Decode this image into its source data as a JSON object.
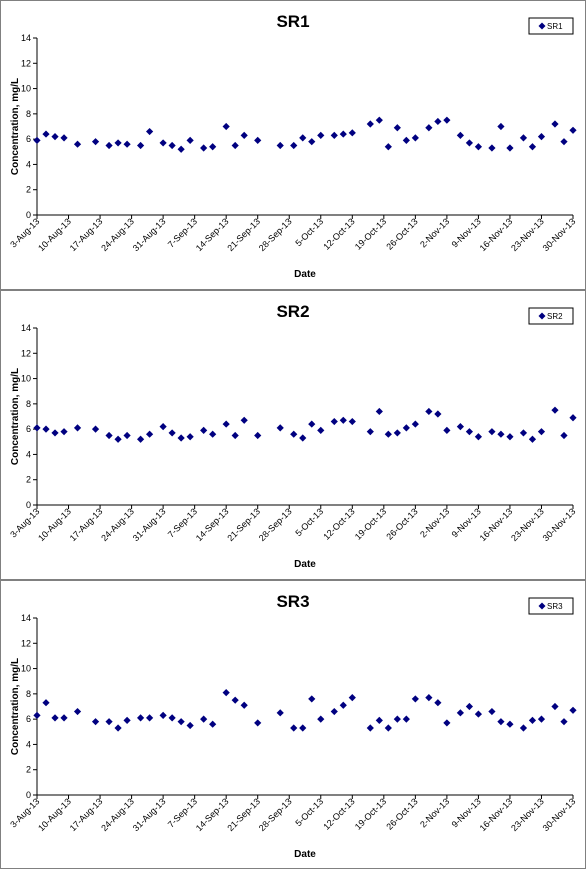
{
  "dates": [
    "3-Aug-13",
    "10-Aug-13",
    "17-Aug-13",
    "24-Aug-13",
    "31-Aug-13",
    "7-Sep-13",
    "14-Sep-13",
    "21-Sep-13",
    "28-Sep-13",
    "5-Oct-13",
    "12-Oct-13",
    "19-Oct-13",
    "26-Oct-13",
    "2-Nov-13",
    "9-Nov-13",
    "16-Nov-13",
    "23-Nov-13",
    "30-Nov-13"
  ],
  "colors": {
    "marker": "#000080",
    "axis": "#000000"
  },
  "chart_data": [
    {
      "type": "scatter",
      "title": "SR1",
      "legend": "SR1",
      "legend_position": "top-right",
      "xlabel": "Date",
      "ylabel": "Concentration, mg/L",
      "x_range": [
        "3-Aug-13",
        "30-Nov-13"
      ],
      "ylim": [
        0,
        14
      ],
      "yticks": [
        0,
        2,
        4,
        6,
        8,
        10,
        12,
        14
      ],
      "grid": false,
      "series": [
        {
          "name": "SR1",
          "points": [
            [
              "3-Aug-13",
              5.9
            ],
            [
              "5-Aug-13",
              6.4
            ],
            [
              "7-Aug-13",
              6.2
            ],
            [
              "9-Aug-13",
              6.1
            ],
            [
              "12-Aug-13",
              5.6
            ],
            [
              "16-Aug-13",
              5.8
            ],
            [
              "19-Aug-13",
              5.5
            ],
            [
              "21-Aug-13",
              5.7
            ],
            [
              "23-Aug-13",
              5.6
            ],
            [
              "26-Aug-13",
              5.5
            ],
            [
              "28-Aug-13",
              6.6
            ],
            [
              "31-Aug-13",
              5.7
            ],
            [
              "2-Sep-13",
              5.5
            ],
            [
              "4-Sep-13",
              5.2
            ],
            [
              "6-Sep-13",
              5.9
            ],
            [
              "9-Sep-13",
              5.3
            ],
            [
              "11-Sep-13",
              5.4
            ],
            [
              "14-Sep-13",
              7.0
            ],
            [
              "16-Sep-13",
              5.5
            ],
            [
              "18-Sep-13",
              6.3
            ],
            [
              "21-Sep-13",
              5.9
            ],
            [
              "26-Sep-13",
              5.5
            ],
            [
              "29-Sep-13",
              5.5
            ],
            [
              "1-Oct-13",
              6.1
            ],
            [
              "3-Oct-13",
              5.8
            ],
            [
              "5-Oct-13",
              6.3
            ],
            [
              "8-Oct-13",
              6.3
            ],
            [
              "10-Oct-13",
              6.4
            ],
            [
              "12-Oct-13",
              6.5
            ],
            [
              "16-Oct-13",
              7.2
            ],
            [
              "18-Oct-13",
              7.5
            ],
            [
              "20-Oct-13",
              5.4
            ],
            [
              "22-Oct-13",
              6.9
            ],
            [
              "24-Oct-13",
              5.9
            ],
            [
              "26-Oct-13",
              6.1
            ],
            [
              "29-Oct-13",
              6.9
            ],
            [
              "31-Oct-13",
              7.4
            ],
            [
              "2-Nov-13",
              7.5
            ],
            [
              "5-Nov-13",
              6.3
            ],
            [
              "7-Nov-13",
              5.7
            ],
            [
              "9-Nov-13",
              5.4
            ],
            [
              "12-Nov-13",
              5.3
            ],
            [
              "14-Nov-13",
              7.0
            ],
            [
              "16-Nov-13",
              5.3
            ],
            [
              "19-Nov-13",
              6.1
            ],
            [
              "21-Nov-13",
              5.4
            ],
            [
              "23-Nov-13",
              6.2
            ],
            [
              "26-Nov-13",
              7.2
            ],
            [
              "28-Nov-13",
              5.8
            ],
            [
              "30-Nov-13",
              6.7
            ]
          ]
        }
      ]
    },
    {
      "type": "scatter",
      "title": "SR2",
      "legend": "SR2",
      "legend_position": "top-right",
      "xlabel": "Date",
      "ylabel": "Concentration, mg/L",
      "x_range": [
        "3-Aug-13",
        "30-Nov-13"
      ],
      "ylim": [
        0,
        14
      ],
      "yticks": [
        0,
        2,
        4,
        6,
        8,
        10,
        12,
        14
      ],
      "grid": false,
      "series": [
        {
          "name": "SR2",
          "points": [
            [
              "3-Aug-13",
              6.1
            ],
            [
              "5-Aug-13",
              6.0
            ],
            [
              "7-Aug-13",
              5.7
            ],
            [
              "9-Aug-13",
              5.8
            ],
            [
              "12-Aug-13",
              6.1
            ],
            [
              "16-Aug-13",
              6.0
            ],
            [
              "19-Aug-13",
              5.5
            ],
            [
              "21-Aug-13",
              5.2
            ],
            [
              "23-Aug-13",
              5.5
            ],
            [
              "26-Aug-13",
              5.2
            ],
            [
              "28-Aug-13",
              5.6
            ],
            [
              "31-Aug-13",
              6.2
            ],
            [
              "2-Sep-13",
              5.7
            ],
            [
              "4-Sep-13",
              5.3
            ],
            [
              "6-Sep-13",
              5.4
            ],
            [
              "9-Sep-13",
              5.9
            ],
            [
              "11-Sep-13",
              5.6
            ],
            [
              "14-Sep-13",
              6.4
            ],
            [
              "16-Sep-13",
              5.5
            ],
            [
              "18-Sep-13",
              6.7
            ],
            [
              "21-Sep-13",
              5.5
            ],
            [
              "26-Sep-13",
              6.1
            ],
            [
              "29-Sep-13",
              5.6
            ],
            [
              "1-Oct-13",
              5.3
            ],
            [
              "3-Oct-13",
              6.4
            ],
            [
              "5-Oct-13",
              5.9
            ],
            [
              "8-Oct-13",
              6.6
            ],
            [
              "10-Oct-13",
              6.7
            ],
            [
              "12-Oct-13",
              6.6
            ],
            [
              "16-Oct-13",
              5.8
            ],
            [
              "18-Oct-13",
              7.4
            ],
            [
              "20-Oct-13",
              5.6
            ],
            [
              "22-Oct-13",
              5.7
            ],
            [
              "24-Oct-13",
              6.1
            ],
            [
              "26-Oct-13",
              6.4
            ],
            [
              "29-Oct-13",
              7.4
            ],
            [
              "31-Oct-13",
              7.2
            ],
            [
              "2-Nov-13",
              5.9
            ],
            [
              "5-Nov-13",
              6.2
            ],
            [
              "7-Nov-13",
              5.8
            ],
            [
              "9-Nov-13",
              5.4
            ],
            [
              "12-Nov-13",
              5.8
            ],
            [
              "14-Nov-13",
              5.6
            ],
            [
              "16-Nov-13",
              5.4
            ],
            [
              "19-Nov-13",
              5.7
            ],
            [
              "21-Nov-13",
              5.2
            ],
            [
              "23-Nov-13",
              5.8
            ],
            [
              "26-Nov-13",
              7.5
            ],
            [
              "28-Nov-13",
              5.5
            ],
            [
              "30-Nov-13",
              6.9
            ]
          ]
        }
      ]
    },
    {
      "type": "scatter",
      "title": "SR3",
      "legend": "SR3",
      "legend_position": "top-right",
      "xlabel": "Date",
      "ylabel": "Concentration, mg/L",
      "x_range": [
        "3-Aug-13",
        "30-Nov-13"
      ],
      "ylim": [
        0,
        14
      ],
      "yticks": [
        0,
        2,
        4,
        6,
        8,
        10,
        12,
        14
      ],
      "grid": false,
      "series": [
        {
          "name": "SR3",
          "points": [
            [
              "3-Aug-13",
              6.3
            ],
            [
              "5-Aug-13",
              7.3
            ],
            [
              "7-Aug-13",
              6.1
            ],
            [
              "9-Aug-13",
              6.1
            ],
            [
              "12-Aug-13",
              6.6
            ],
            [
              "16-Aug-13",
              5.8
            ],
            [
              "19-Aug-13",
              5.8
            ],
            [
              "21-Aug-13",
              5.3
            ],
            [
              "23-Aug-13",
              5.9
            ],
            [
              "26-Aug-13",
              6.1
            ],
            [
              "28-Aug-13",
              6.1
            ],
            [
              "31-Aug-13",
              6.3
            ],
            [
              "2-Sep-13",
              6.1
            ],
            [
              "4-Sep-13",
              5.8
            ],
            [
              "6-Sep-13",
              5.5
            ],
            [
              "9-Sep-13",
              6.0
            ],
            [
              "11-Sep-13",
              5.6
            ],
            [
              "14-Sep-13",
              8.1
            ],
            [
              "16-Sep-13",
              7.5
            ],
            [
              "18-Sep-13",
              7.1
            ],
            [
              "21-Sep-13",
              5.7
            ],
            [
              "26-Sep-13",
              6.5
            ],
            [
              "29-Sep-13",
              5.3
            ],
            [
              "1-Oct-13",
              5.3
            ],
            [
              "3-Oct-13",
              7.6
            ],
            [
              "5-Oct-13",
              6.0
            ],
            [
              "8-Oct-13",
              6.6
            ],
            [
              "10-Oct-13",
              7.1
            ],
            [
              "12-Oct-13",
              7.7
            ],
            [
              "16-Oct-13",
              5.3
            ],
            [
              "18-Oct-13",
              5.9
            ],
            [
              "20-Oct-13",
              5.3
            ],
            [
              "22-Oct-13",
              6.0
            ],
            [
              "24-Oct-13",
              6.0
            ],
            [
              "26-Oct-13",
              7.6
            ],
            [
              "29-Oct-13",
              7.7
            ],
            [
              "31-Oct-13",
              7.3
            ],
            [
              "2-Nov-13",
              5.7
            ],
            [
              "5-Nov-13",
              6.5
            ],
            [
              "7-Nov-13",
              7.0
            ],
            [
              "9-Nov-13",
              6.4
            ],
            [
              "12-Nov-13",
              6.6
            ],
            [
              "14-Nov-13",
              5.8
            ],
            [
              "16-Nov-13",
              5.6
            ],
            [
              "19-Nov-13",
              5.3
            ],
            [
              "21-Nov-13",
              5.9
            ],
            [
              "23-Nov-13",
              6.0
            ],
            [
              "26-Nov-13",
              7.0
            ],
            [
              "28-Nov-13",
              5.8
            ],
            [
              "30-Nov-13",
              6.7
            ]
          ]
        }
      ]
    }
  ]
}
